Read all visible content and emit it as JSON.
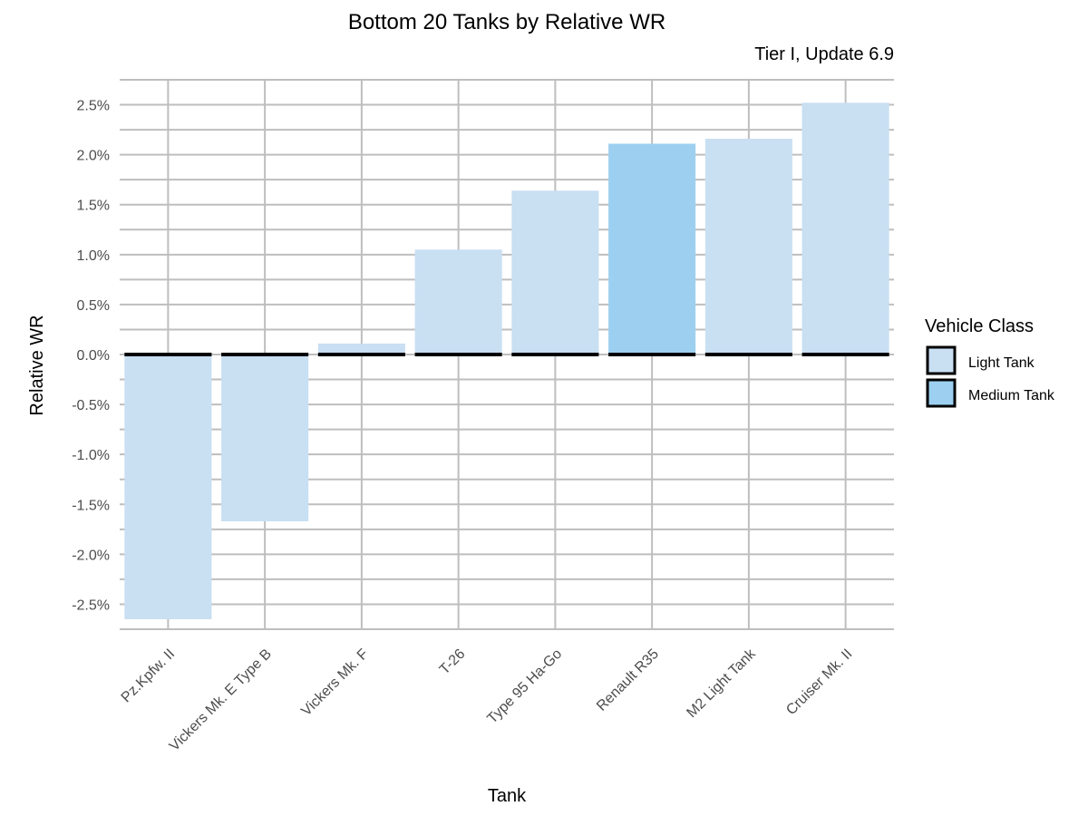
{
  "chart_data": {
    "type": "bar",
    "title": "Bottom 20 Tanks by Relative WR",
    "subtitle": "Tier I, Update 6.9",
    "xlabel": "Tank",
    "ylabel": "Relative WR",
    "categories": [
      "Pz.Kpfw. II",
      "Vickers Mk. E Type B",
      "Vickers Mk. F",
      "T-26",
      "Type 95 Ha-Go",
      "Renault R35",
      "M2 Light Tank",
      "Cruiser Mk. II"
    ],
    "values": [
      -2.65,
      -1.67,
      0.11,
      1.05,
      1.64,
      2.11,
      2.16,
      2.52
    ],
    "classes": [
      "Light Tank",
      "Light Tank",
      "Light Tank",
      "Light Tank",
      "Light Tank",
      "Medium Tank",
      "Light Tank",
      "Light Tank"
    ],
    "ylim": [
      -2.75,
      2.75
    ],
    "yticks": [
      2.5,
      2.0,
      1.5,
      1.0,
      0.5,
      0.0,
      -0.5,
      -1.0,
      -1.5,
      -2.0,
      -2.5
    ],
    "ytick_labels": [
      "2.5%",
      "2.0%",
      "1.5%",
      "1.0%",
      "0.5%",
      "0.0%",
      "-0.5%",
      "-1.0%",
      "-1.5%",
      "-2.0%",
      "-2.5%"
    ],
    "grid": true,
    "baseline_value": 0,
    "legend": {
      "title": "Vehicle Class",
      "position": "right",
      "entries": [
        {
          "label": "Light Tank",
          "color": "#c9dff2"
        },
        {
          "label": "Medium Tank",
          "color": "#9dd0f0"
        }
      ]
    },
    "colors": {
      "Light Tank": "#c9dff2",
      "Medium Tank": "#9dd0f0",
      "grid": "#bebebe",
      "baseline": "#000000"
    }
  }
}
